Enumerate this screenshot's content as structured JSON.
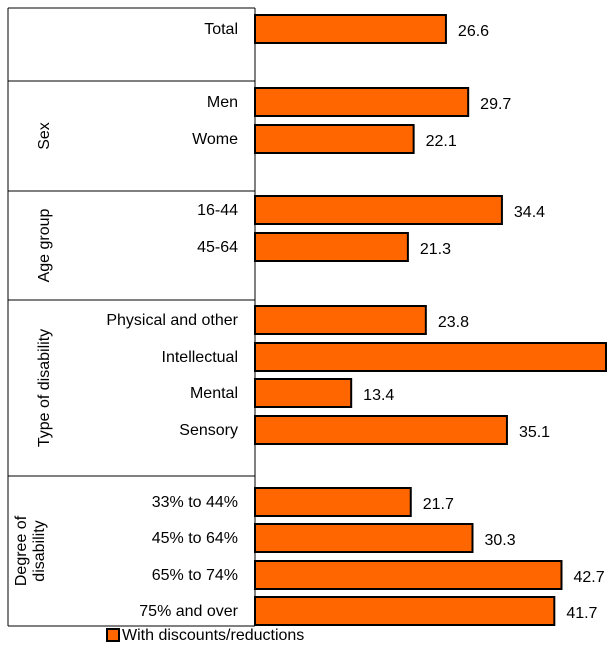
{
  "chart_data": {
    "type": "bar",
    "orientation": "horizontal",
    "groups": [
      {
        "name": "",
        "categories": [
          "Total"
        ],
        "values": [
          26.6
        ]
      },
      {
        "name": "Sex",
        "categories": [
          "Men",
          "Wome"
        ],
        "values": [
          29.7,
          22.1
        ]
      },
      {
        "name": "Age group",
        "categories": [
          "16-44",
          "45-64"
        ],
        "values": [
          34.4,
          21.3
        ]
      },
      {
        "name": "Type of disability",
        "categories": [
          "Physical and other",
          "Intellectual",
          "Mental",
          "Sensory"
        ],
        "values": [
          23.8,
          48.9,
          13.4,
          35.1
        ]
      },
      {
        "name": "Degree of disability",
        "name_lines": [
          "Degree of",
          "disability"
        ],
        "categories": [
          "33% to 44%",
          "45% to 64%",
          "65% to 74%",
          "75% and over"
        ],
        "values": [
          21.7,
          30.3,
          42.7,
          41.7
        ]
      }
    ],
    "series": [
      {
        "name": "With discounts/reductions",
        "color": "#FF6600"
      }
    ],
    "xlim": [
      0,
      48.9
    ],
    "legend": "bottom-left",
    "grid": false,
    "colors": {
      "bar": "#FF6600",
      "outline": "#000000"
    }
  }
}
